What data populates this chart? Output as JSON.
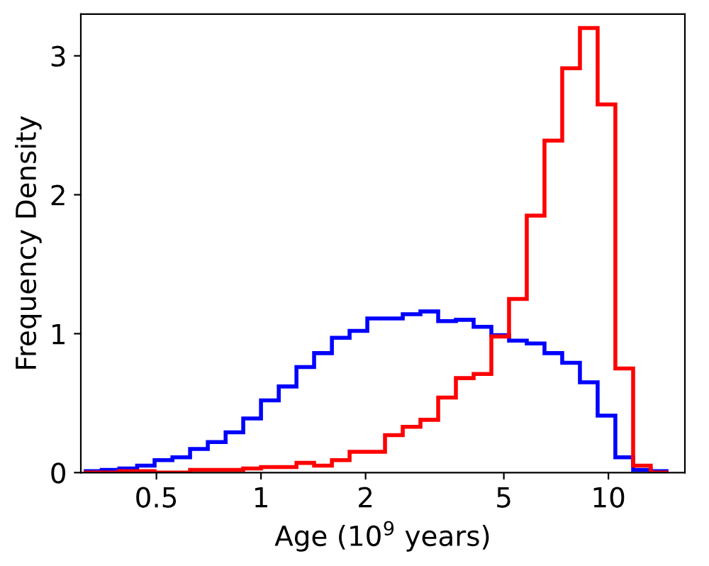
{
  "chart_data": {
    "type": "histogram",
    "xlabel": "Age (10$^{9}$ years)",
    "ylabel": "Frequency Density",
    "log": "x",
    "bins": [
      0.309,
      0.348,
      0.391,
      0.44,
      0.494,
      0.556,
      0.625,
      0.703,
      0.791,
      0.889,
      1.0,
      1.125,
      1.265,
      1.422,
      1.6,
      1.799,
      2.023,
      2.275,
      2.559,
      2.877,
      3.236,
      3.639,
      4.093,
      4.603,
      5.176,
      5.821,
      6.546,
      7.362,
      8.279,
      9.311,
      10.47,
      11.78,
      13.24,
      14.89
    ],
    "series": [
      {
        "color": "#0000ff",
        "values": [
          0.01,
          0.02,
          0.03,
          0.05,
          0.09,
          0.11,
          0.17,
          0.22,
          0.29,
          0.39,
          0.52,
          0.62,
          0.76,
          0.86,
          0.97,
          1.02,
          1.11,
          1.11,
          1.14,
          1.16,
          1.09,
          1.1,
          1.05,
          0.99,
          0.95,
          0.93,
          0.86,
          0.79,
          0.65,
          0.41,
          0.11,
          0.02,
          0.01
        ]
      },
      {
        "color": "#ff0000",
        "values": [
          0,
          0,
          0.01,
          0.01,
          0,
          0,
          0.02,
          0.02,
          0.02,
          0.03,
          0.04,
          0.04,
          0.07,
          0.05,
          0.09,
          0.15,
          0.15,
          0.27,
          0.33,
          0.38,
          0.54,
          0.68,
          0.71,
          0.98,
          1.25,
          1.85,
          2.39,
          2.91,
          3.2,
          2.65,
          0.75,
          0.05,
          0
        ]
      }
    ],
    "xlim": [
      0.303,
      16.6
    ],
    "ylim": [
      0,
      3.3
    ],
    "xticks": [
      0.5,
      1,
      2,
      5,
      10
    ],
    "yticks": [
      0,
      1,
      2,
      3
    ],
    "grid": false,
    "legend": false
  }
}
